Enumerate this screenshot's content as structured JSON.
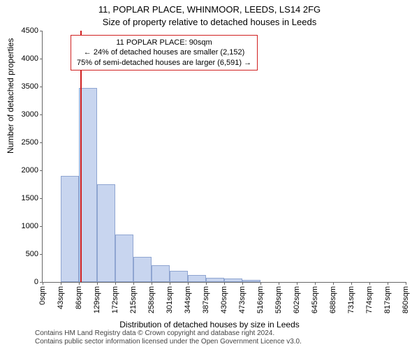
{
  "title_main": "11, POPLAR PLACE, WHINMOOR, LEEDS, LS14 2FG",
  "title_sub": "Size of property relative to detached houses in Leeds",
  "y_axis": {
    "label": "Number of detached properties",
    "min": 0,
    "max": 4500,
    "step": 500
  },
  "x_axis": {
    "label": "Distribution of detached houses by size in Leeds",
    "tick_labels": [
      "0sqm",
      "43sqm",
      "86sqm",
      "129sqm",
      "172sqm",
      "215sqm",
      "258sqm",
      "301sqm",
      "344sqm",
      "387sqm",
      "430sqm",
      "473sqm",
      "516sqm",
      "559sqm",
      "602sqm",
      "645sqm",
      "688sqm",
      "731sqm",
      "774sqm",
      "817sqm",
      "860sqm"
    ]
  },
  "chart": {
    "type": "histogram",
    "bar_color": "#c8d5ef",
    "bar_border": "#8fa5d1",
    "marker_color": "#d02020",
    "background_color": "#ffffff",
    "values": [
      0,
      1900,
      3480,
      1750,
      850,
      450,
      300,
      200,
      120,
      80,
      60,
      40,
      0,
      0,
      0,
      0,
      0,
      0,
      0,
      0
    ],
    "marker_bin_index": 2,
    "marker_position_in_bin": 0.1
  },
  "info_box": {
    "line1": "11 POPLAR PLACE: 90sqm",
    "line2": "← 24% of detached houses are smaller (2,152)",
    "line3": "75% of semi-detached houses are larger (6,591) →"
  },
  "footer": {
    "line1": "Contains HM Land Registry data © Crown copyright and database right 2024.",
    "line2": "Contains public sector information licensed under the Open Government Licence v3.0."
  }
}
